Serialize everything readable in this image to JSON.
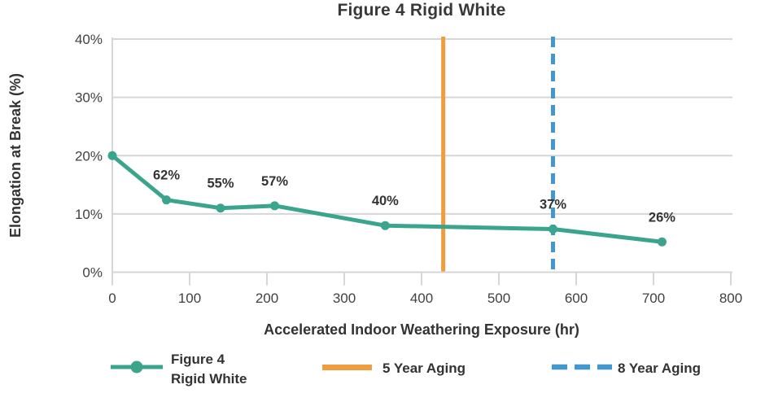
{
  "chart_data": {
    "type": "line",
    "title": "Figure 4 Rigid White",
    "xlabel": "Accelerated Indoor Weathering Exposure (hr)",
    "ylabel": "Elongation at Break (%)",
    "xlim": [
      0,
      800
    ],
    "ylim": [
      0,
      40
    ],
    "x_ticks": [
      0,
      100,
      200,
      300,
      400,
      500,
      600,
      700,
      800
    ],
    "y_ticks": [
      0,
      10,
      20,
      30,
      40
    ],
    "y_tick_suffix": "%",
    "grid": "horizontal",
    "legend_position": "bottom",
    "colors": {
      "series": "#3BA48C",
      "vline_5yr": "#F09D3D",
      "vline_8yr": "#4197CE",
      "gridline": "#D6D6D6",
      "axis": "#D6D6D6",
      "title_text": "#383838",
      "tick_text": "#414141",
      "label_text": "#333333"
    },
    "series": [
      {
        "name": "Figure 4 Rigid White",
        "marker": "circle",
        "color": "#3BA48C",
        "x": [
          0,
          70,
          140,
          210,
          353,
          570,
          711
        ],
        "y": [
          20,
          12.4,
          11.0,
          11.4,
          8.0,
          7.4,
          5.2
        ],
        "point_labels": [
          "",
          "62%",
          "55%",
          "57%",
          "40%",
          "37%",
          "26%"
        ]
      }
    ],
    "vlines": [
      {
        "label": "5 Year Aging",
        "x": 428,
        "color": "#F09D3D",
        "style": "solid"
      },
      {
        "label": "8 Year Aging",
        "x": 570,
        "color": "#4197CE",
        "style": "dashed"
      }
    ],
    "legend": {
      "items": [
        {
          "lines": [
            "Figure 4",
            "Rigid White"
          ],
          "swatch": "line-marker",
          "color": "#3BA48C"
        },
        {
          "lines": [
            "5 Year Aging"
          ],
          "swatch": "line",
          "color": "#F09D3D"
        },
        {
          "lines": [
            "8 Year Aging"
          ],
          "swatch": "dashed-line",
          "color": "#4197CE"
        }
      ]
    }
  }
}
